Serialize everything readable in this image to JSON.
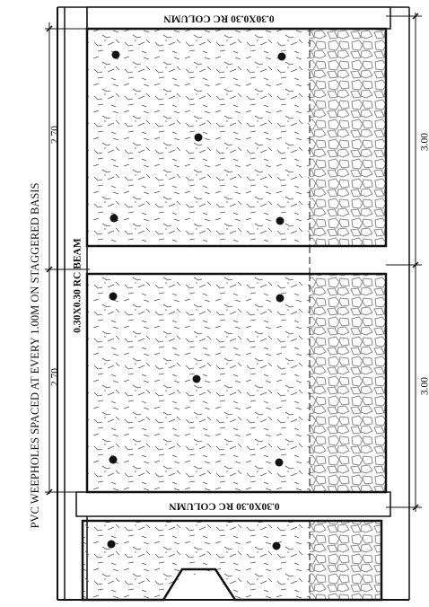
{
  "drawing": {
    "column_label_top": "0.30X0.30 RC COLUMN",
    "column_label_mid": "0.30X0.30 RC COLUMN",
    "beam_label": "0.30X0.30 RC BEAM",
    "weephole_note": "PVC WEEPHOLES SPACED AT EVERY 1.00M ON STAGGERED BASIS",
    "dim_left_top": "2.70",
    "dim_left_bottom": "2.70",
    "dim_right_top": "3.00",
    "dim_right_bottom": "3.00"
  },
  "colors": {
    "line": "#111111",
    "stone": "#8a8a8a",
    "hatch": "#555555"
  }
}
